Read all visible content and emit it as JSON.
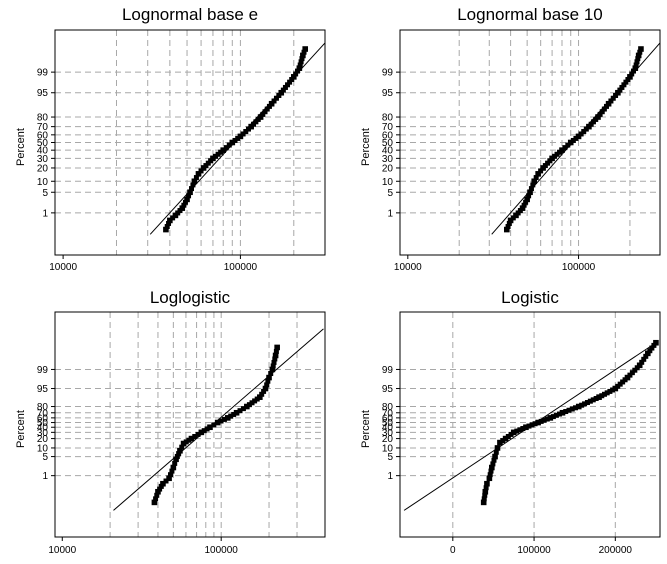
{
  "chart_data": [
    {
      "type": "scatter",
      "title": "Lognormal base e",
      "ylabel": "Percent",
      "x_scale": "log",
      "y_scale": "lognormal-probability",
      "xlim": [
        9000,
        300000
      ],
      "x_ticks": [
        10000,
        100000
      ],
      "x_tick_labels": [
        "10000",
        "100000"
      ],
      "x_grid": [
        20000,
        30000,
        40000,
        50000,
        60000,
        70000,
        80000,
        90000,
        100000,
        200000
      ],
      "y_ticks": [
        1,
        5,
        10,
        20,
        30,
        40,
        50,
        60,
        70,
        80,
        95,
        99
      ],
      "y_tick_labels": [
        "1",
        "5",
        "10",
        "20",
        "30",
        "40",
        "50",
        "60",
        "70",
        "80",
        "95",
        "99"
      ],
      "fit_line": [
        [
          31000,
          0.12
        ],
        [
          300000,
          99.95
        ]
      ],
      "points": [
        [
          38000,
          0.2
        ],
        [
          40000,
          0.5
        ],
        [
          43000,
          0.8
        ],
        [
          47000,
          1.5
        ],
        [
          50000,
          3
        ],
        [
          52000,
          5
        ],
        [
          55000,
          10
        ],
        [
          58000,
          15
        ],
        [
          62000,
          20
        ],
        [
          70000,
          30
        ],
        [
          80000,
          40
        ],
        [
          90000,
          50
        ],
        [
          100000,
          58
        ],
        [
          115000,
          70
        ],
        [
          130000,
          80
        ],
        [
          150000,
          90
        ],
        [
          170000,
          95
        ],
        [
          200000,
          98.5
        ],
        [
          215000,
          99.3
        ],
        [
          225000,
          99.8
        ],
        [
          232000,
          99.9
        ]
      ],
      "grid": true
    },
    {
      "type": "scatter",
      "title": "Lognormal base 10",
      "ylabel": "Percent",
      "x_scale": "log",
      "y_scale": "lognormal-probability",
      "xlim": [
        9000,
        300000
      ],
      "x_ticks": [
        10000,
        100000
      ],
      "x_tick_labels": [
        "10000",
        "100000"
      ],
      "x_grid": [
        20000,
        30000,
        40000,
        50000,
        60000,
        70000,
        80000,
        90000,
        100000,
        200000
      ],
      "y_ticks": [
        1,
        5,
        10,
        20,
        30,
        40,
        50,
        60,
        70,
        80,
        95,
        99
      ],
      "y_tick_labels": [
        "1",
        "5",
        "10",
        "20",
        "30",
        "40",
        "50",
        "60",
        "70",
        "80",
        "95",
        "99"
      ],
      "fit_line": [
        [
          31000,
          0.12
        ],
        [
          300000,
          99.95
        ]
      ],
      "points": [
        [
          38000,
          0.2
        ],
        [
          40000,
          0.5
        ],
        [
          43000,
          0.8
        ],
        [
          47000,
          1.5
        ],
        [
          50000,
          3
        ],
        [
          52000,
          5
        ],
        [
          55000,
          10
        ],
        [
          58000,
          15
        ],
        [
          62000,
          20
        ],
        [
          70000,
          30
        ],
        [
          80000,
          40
        ],
        [
          90000,
          50
        ],
        [
          100000,
          58
        ],
        [
          115000,
          70
        ],
        [
          130000,
          80
        ],
        [
          150000,
          90
        ],
        [
          170000,
          95
        ],
        [
          200000,
          98.5
        ],
        [
          215000,
          99.3
        ],
        [
          225000,
          99.8
        ],
        [
          232000,
          99.9
        ]
      ],
      "grid": true
    },
    {
      "type": "scatter",
      "title": "Loglogistic",
      "ylabel": "Percent",
      "x_scale": "log",
      "y_scale": "loglogistic-probability",
      "xlim": [
        9000,
        450000
      ],
      "x_ticks": [
        10000,
        100000
      ],
      "x_tick_labels": [
        "10000",
        "100000"
      ],
      "x_grid": [
        20000,
        30000,
        40000,
        50000,
        60000,
        70000,
        80000,
        90000,
        100000,
        200000,
        300000
      ],
      "y_ticks": [
        1,
        5,
        10,
        20,
        30,
        40,
        50,
        60,
        70,
        80,
        95,
        99
      ],
      "y_tick_labels": [
        "1",
        "5",
        "10",
        "20",
        "30",
        "40",
        "50",
        "60",
        "70",
        "80",
        "95",
        "99"
      ],
      "fit_line": [
        [
          21000,
          0.05
        ],
        [
          440000,
          99.97
        ]
      ],
      "points": [
        [
          38000,
          0.1
        ],
        [
          40000,
          0.25
        ],
        [
          43000,
          0.5
        ],
        [
          47000,
          0.8
        ],
        [
          50000,
          2
        ],
        [
          52000,
          4
        ],
        [
          55000,
          8
        ],
        [
          58000,
          14
        ],
        [
          65000,
          20
        ],
        [
          75000,
          30
        ],
        [
          85000,
          40
        ],
        [
          95000,
          50
        ],
        [
          110000,
          60
        ],
        [
          125000,
          70
        ],
        [
          145000,
          80
        ],
        [
          175000,
          90
        ],
        [
          190000,
          95
        ],
        [
          200000,
          98
        ],
        [
          210000,
          99
        ],
        [
          220000,
          99.7
        ],
        [
          225000,
          99.85
        ]
      ],
      "grid": true
    },
    {
      "type": "scatter",
      "title": "Logistic",
      "ylabel": "Percent",
      "x_scale": "linear",
      "y_scale": "logistic-probability",
      "xlim": [
        -65000,
        255000
      ],
      "x_ticks": [
        0,
        100000,
        200000
      ],
      "x_tick_labels": [
        "0",
        "100000",
        "200000"
      ],
      "x_grid": [
        0,
        100000,
        200000
      ],
      "y_ticks": [
        1,
        5,
        10,
        20,
        30,
        40,
        50,
        60,
        70,
        80,
        95,
        99
      ],
      "y_tick_labels": [
        "1",
        "5",
        "10",
        "20",
        "30",
        "40",
        "50",
        "60",
        "70",
        "80",
        "95",
        "99"
      ],
      "fit_line": [
        [
          -60000,
          0.05
        ],
        [
          250000,
          99.9
        ]
      ],
      "points": [
        [
          38000,
          0.1
        ],
        [
          40000,
          0.25
        ],
        [
          42000,
          0.5
        ],
        [
          45000,
          0.8
        ],
        [
          48000,
          2
        ],
        [
          52000,
          5
        ],
        [
          55000,
          10
        ],
        [
          58000,
          15
        ],
        [
          65000,
          20
        ],
        [
          75000,
          30
        ],
        [
          90000,
          40
        ],
        [
          105000,
          50
        ],
        [
          120000,
          60
        ],
        [
          135000,
          70
        ],
        [
          155000,
          80
        ],
        [
          180000,
          90
        ],
        [
          200000,
          95
        ],
        [
          215000,
          98
        ],
        [
          230000,
          99.3
        ],
        [
          240000,
          99.75
        ],
        [
          250000,
          99.9
        ]
      ],
      "grid": true
    }
  ]
}
